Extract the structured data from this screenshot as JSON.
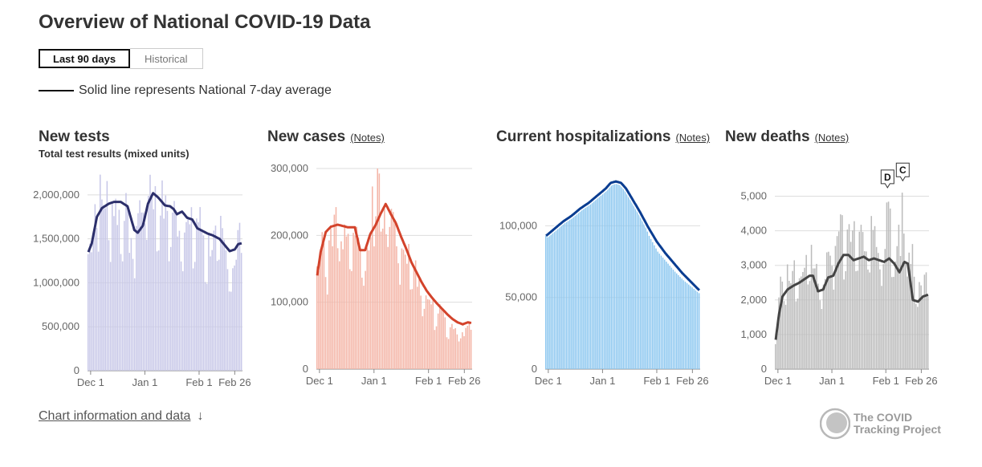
{
  "page": {
    "title": "Overview of National COVID-19 Data",
    "tabs": [
      {
        "label": "Last 90 days"
      },
      {
        "label": "Historical"
      }
    ],
    "legend_text": "Solid line represents National 7-day average",
    "footer_link": "Chart information and data",
    "footer_arrow": "↓",
    "logo_line1": "The COVID",
    "logo_line2": "Tracking Project"
  },
  "colors": {
    "tests": "#c8c8e8",
    "tests_line": "#2c2f6b",
    "cases": "#f4b6a8",
    "cases_line": "#d3432b",
    "hosp": "#8ec8f0",
    "hosp_line": "#0a3d91",
    "deaths": "#bcbcbc",
    "deaths_line": "#444444"
  },
  "chart_data": [
    {
      "id": "tests",
      "type": "bar",
      "title": "New tests",
      "subtitle": "Total test results (mixed units)",
      "notes": "",
      "ylim": [
        0,
        2300000
      ],
      "yticks": [
        0,
        500000,
        1000000,
        1500000,
        2000000
      ],
      "ytick_labels": [
        "0",
        "500,000",
        "1,000,000",
        "1,500,000",
        "2,000,000"
      ],
      "xtick_labels": [
        "Dec 1",
        "Jan 1",
        "Feb 1",
        "Feb 26"
      ],
      "x": [
        0,
        90
      ],
      "bar_anchors": [
        [
          0,
          1330000
        ],
        [
          3,
          1600000
        ],
        [
          5,
          2250000
        ],
        [
          8,
          1900000
        ],
        [
          11,
          2000000
        ],
        [
          15,
          1900000
        ],
        [
          18,
          1800000
        ],
        [
          21,
          1950000
        ],
        [
          24,
          1500000
        ],
        [
          27,
          1600000
        ],
        [
          30,
          1850000
        ],
        [
          33,
          2050000
        ],
        [
          36,
          2200000
        ],
        [
          39,
          1950000
        ],
        [
          42,
          2000000
        ],
        [
          45,
          1800000
        ],
        [
          48,
          1900000
        ],
        [
          52,
          1700000
        ],
        [
          56,
          1800000
        ],
        [
          59,
          1600000
        ],
        [
          62,
          1750000
        ],
        [
          65,
          1700000
        ],
        [
          68,
          1500000
        ],
        [
          71,
          1450000
        ],
        [
          74,
          1500000
        ],
        [
          77,
          1600000
        ],
        [
          80,
          1350000
        ],
        [
          83,
          1300000
        ],
        [
          86,
          1200000
        ],
        [
          88,
          1800000
        ],
        [
          90,
          1500000
        ]
      ],
      "line_anchors": [
        [
          0,
          1350000
        ],
        [
          2,
          1450000
        ],
        [
          5,
          1750000
        ],
        [
          8,
          1850000
        ],
        [
          12,
          1900000
        ],
        [
          15,
          1920000
        ],
        [
          19,
          1920000
        ],
        [
          23,
          1870000
        ],
        [
          27,
          1600000
        ],
        [
          29,
          1570000
        ],
        [
          32,
          1650000
        ],
        [
          35,
          1900000
        ],
        [
          38,
          2020000
        ],
        [
          41,
          1970000
        ],
        [
          45,
          1880000
        ],
        [
          48,
          1870000
        ],
        [
          50,
          1840000
        ],
        [
          52,
          1780000
        ],
        [
          55,
          1810000
        ],
        [
          58,
          1740000
        ],
        [
          61,
          1720000
        ],
        [
          64,
          1620000
        ],
        [
          67,
          1590000
        ],
        [
          70,
          1560000
        ],
        [
          73,
          1540000
        ],
        [
          77,
          1500000
        ],
        [
          80,
          1430000
        ],
        [
          83,
          1360000
        ],
        [
          86,
          1380000
        ],
        [
          88,
          1440000
        ],
        [
          90,
          1450000
        ]
      ]
    },
    {
      "id": "cases",
      "type": "bar",
      "title": "New cases",
      "subtitle": "",
      "notes": "(Notes)",
      "ylim": [
        0,
        300000
      ],
      "yticks": [
        0,
        100000,
        200000,
        300000
      ],
      "ytick_labels": [
        "0",
        "100,000",
        "200,000",
        "300,000"
      ],
      "xtick_labels": [
        "Dec 1",
        "Jan 1",
        "Feb 1",
        "Feb 26"
      ],
      "x": [
        0,
        90
      ],
      "bar_anchors": [
        [
          0,
          145000
        ],
        [
          3,
          210000
        ],
        [
          6,
          160000
        ],
        [
          9,
          210000
        ],
        [
          12,
          230000
        ],
        [
          15,
          200000
        ],
        [
          18,
          210000
        ],
        [
          21,
          180000
        ],
        [
          24,
          205000
        ],
        [
          27,
          155000
        ],
        [
          30,
          200000
        ],
        [
          33,
          270000
        ],
        [
          35,
          290000
        ],
        [
          37,
          230000
        ],
        [
          40,
          250000
        ],
        [
          43,
          220000
        ],
        [
          46,
          200000
        ],
        [
          49,
          180000
        ],
        [
          52,
          175000
        ],
        [
          55,
          165000
        ],
        [
          58,
          140000
        ],
        [
          61,
          120000
        ],
        [
          64,
          110000
        ],
        [
          67,
          95000
        ],
        [
          70,
          90000
        ],
        [
          73,
          80000
        ],
        [
          76,
          70000
        ],
        [
          79,
          60000
        ],
        [
          82,
          60000
        ],
        [
          85,
          55000
        ],
        [
          88,
          75000
        ],
        [
          90,
          70000
        ]
      ],
      "line_anchors": [
        [
          0,
          140000
        ],
        [
          2,
          175000
        ],
        [
          5,
          205000
        ],
        [
          8,
          213000
        ],
        [
          12,
          216000
        ],
        [
          15,
          214000
        ],
        [
          18,
          212000
        ],
        [
          22,
          212000
        ],
        [
          25,
          178000
        ],
        [
          28,
          178000
        ],
        [
          31,
          202000
        ],
        [
          34,
          215000
        ],
        [
          37,
          232000
        ],
        [
          40,
          247000
        ],
        [
          43,
          232000
        ],
        [
          46,
          218000
        ],
        [
          49,
          198000
        ],
        [
          52,
          180000
        ],
        [
          55,
          160000
        ],
        [
          58,
          145000
        ],
        [
          61,
          130000
        ],
        [
          64,
          117000
        ],
        [
          67,
          107000
        ],
        [
          70,
          98000
        ],
        [
          73,
          90000
        ],
        [
          76,
          82000
        ],
        [
          79,
          75000
        ],
        [
          82,
          70000
        ],
        [
          85,
          67000
        ],
        [
          88,
          70000
        ],
        [
          90,
          69000
        ]
      ]
    },
    {
      "id": "hosp",
      "type": "bar",
      "title": "Current hospitalizations",
      "subtitle": "",
      "notes": "(Notes)",
      "ylim": [
        0,
        140000
      ],
      "yticks": [
        0,
        50000,
        100000
      ],
      "ytick_labels": [
        "0",
        "50,000",
        "100,000"
      ],
      "xtick_labels": [
        "Dec 1",
        "Jan 1",
        "Feb 1",
        "Feb 26"
      ],
      "x": [
        0,
        90
      ],
      "bar_anchors": [
        [
          0,
          93000
        ],
        [
          10,
          103000
        ],
        [
          20,
          112000
        ],
        [
          30,
          122000
        ],
        [
          38,
          130000
        ],
        [
          42,
          131000
        ],
        [
          46,
          128000
        ],
        [
          50,
          120000
        ],
        [
          55,
          108000
        ],
        [
          60,
          93000
        ],
        [
          65,
          82000
        ],
        [
          70,
          75000
        ],
        [
          75,
          68000
        ],
        [
          80,
          62000
        ],
        [
          85,
          57000
        ],
        [
          90,
          52000
        ]
      ],
      "line_anchors": [
        [
          0,
          93000
        ],
        [
          5,
          98000
        ],
        [
          10,
          103000
        ],
        [
          15,
          107000
        ],
        [
          20,
          112000
        ],
        [
          25,
          116000
        ],
        [
          30,
          121000
        ],
        [
          35,
          126000
        ],
        [
          38,
          130000
        ],
        [
          41,
          131000
        ],
        [
          44,
          130000
        ],
        [
          47,
          126000
        ],
        [
          50,
          120000
        ],
        [
          55,
          110000
        ],
        [
          60,
          99000
        ],
        [
          65,
          89000
        ],
        [
          70,
          81000
        ],
        [
          75,
          74000
        ],
        [
          80,
          67000
        ],
        [
          85,
          61000
        ],
        [
          90,
          55000
        ]
      ]
    },
    {
      "id": "deaths",
      "type": "bar",
      "title": "New deaths",
      "subtitle": "",
      "notes": "(Notes)",
      "ylim": [
        0,
        5800
      ],
      "yticks": [
        0,
        1000,
        2000,
        3000,
        4000,
        5000
      ],
      "ytick_labels": [
        "0",
        "1,000",
        "2,000",
        "3,000",
        "4,000",
        "5,000"
      ],
      "xtick_labels": [
        "Dec 1",
        "Jan 1",
        "Feb 1",
        "Feb 26"
      ],
      "x": [
        0,
        90
      ],
      "annotations": [
        {
          "label": "D",
          "x": 66,
          "y": 5200
        },
        {
          "label": "C",
          "x": 75,
          "y": 5400
        }
      ],
      "bar_anchors": [
        [
          0,
          800
        ],
        [
          3,
          2500
        ],
        [
          6,
          3000
        ],
        [
          9,
          2600
        ],
        [
          12,
          3000
        ],
        [
          15,
          2400
        ],
        [
          18,
          2900
        ],
        [
          21,
          3300
        ],
        [
          24,
          2800
        ],
        [
          27,
          2500
        ],
        [
          30,
          3000
        ],
        [
          33,
          3700
        ],
        [
          36,
          3600
        ],
        [
          39,
          4100
        ],
        [
          42,
          4000
        ],
        [
          45,
          4200
        ],
        [
          48,
          3800
        ],
        [
          51,
          3600
        ],
        [
          54,
          4100
        ],
        [
          57,
          3800
        ],
        [
          60,
          3700
        ],
        [
          63,
          3300
        ],
        [
          66,
          5200
        ],
        [
          68,
          3600
        ],
        [
          70,
          3400
        ],
        [
          73,
          3800
        ],
        [
          75,
          5400
        ],
        [
          77,
          3000
        ],
        [
          80,
          3500
        ],
        [
          83,
          2300
        ],
        [
          86,
          2400
        ],
        [
          88,
          3100
        ],
        [
          90,
          2100
        ]
      ],
      "line_anchors": [
        [
          0,
          850
        ],
        [
          2,
          1600
        ],
        [
          4,
          2100
        ],
        [
          7,
          2300
        ],
        [
          10,
          2400
        ],
        [
          14,
          2500
        ],
        [
          17,
          2600
        ],
        [
          20,
          2700
        ],
        [
          22,
          2700
        ],
        [
          25,
          2250
        ],
        [
          28,
          2300
        ],
        [
          31,
          2650
        ],
        [
          34,
          2700
        ],
        [
          37,
          3050
        ],
        [
          40,
          3300
        ],
        [
          43,
          3300
        ],
        [
          46,
          3150
        ],
        [
          49,
          3200
        ],
        [
          52,
          3250
        ],
        [
          55,
          3150
        ],
        [
          58,
          3200
        ],
        [
          61,
          3150
        ],
        [
          64,
          3100
        ],
        [
          67,
          3200
        ],
        [
          70,
          3050
        ],
        [
          73,
          2800
        ],
        [
          76,
          3100
        ],
        [
          78,
          3050
        ],
        [
          81,
          2000
        ],
        [
          84,
          1950
        ],
        [
          87,
          2100
        ],
        [
          90,
          2150
        ]
      ]
    }
  ]
}
